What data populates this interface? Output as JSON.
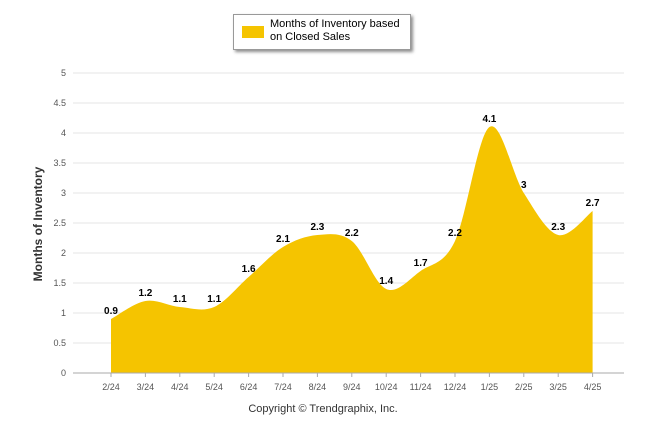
{
  "chart_data": {
    "type": "area",
    "categories": [
      "2/24",
      "3/24",
      "4/24",
      "5/24",
      "6/24",
      "7/24",
      "8/24",
      "9/24",
      "10/24",
      "11/24",
      "12/24",
      "1/25",
      "2/25",
      "3/25",
      "4/25"
    ],
    "series": [
      {
        "name": "Months of Inventory based on Closed Sales",
        "values": [
          0.9,
          1.2,
          1.1,
          1.1,
          1.6,
          2.1,
          2.3,
          2.2,
          1.4,
          1.7,
          2.2,
          4.1,
          3,
          2.3,
          2.7
        ],
        "data_labels": [
          "0.9",
          "1.2",
          "1.1",
          "1.1",
          "1.6",
          "2.1",
          "2.3",
          "2.2",
          "1.4",
          "1.7",
          "2.2",
          "4.1",
          "3",
          "2.3",
          "2.7"
        ],
        "color": "#f5c400"
      }
    ],
    "ylabel": "Months of Inventory",
    "ylim": [
      0,
      5
    ],
    "yticks": [
      0,
      0.5,
      1,
      1.5,
      2,
      2.5,
      3,
      3.5,
      4,
      4.5,
      5
    ],
    "ytick_labels": [
      "0",
      "0.5",
      "1",
      "1.5",
      "2",
      "2.5",
      "3",
      "3.5",
      "4",
      "4.5",
      "5"
    ],
    "grid": true,
    "legend_position": "top-center",
    "legend_label": "Months of Inventory based on Closed Sales"
  },
  "legend": {
    "text": "Months of Inventory based on Closed Sales"
  },
  "footer": {
    "copyright": "Copyright © Trendgraphix, Inc."
  },
  "colors": {
    "series": "#f5c400",
    "grid": "#e6e6e6",
    "axis": "#888888"
  }
}
